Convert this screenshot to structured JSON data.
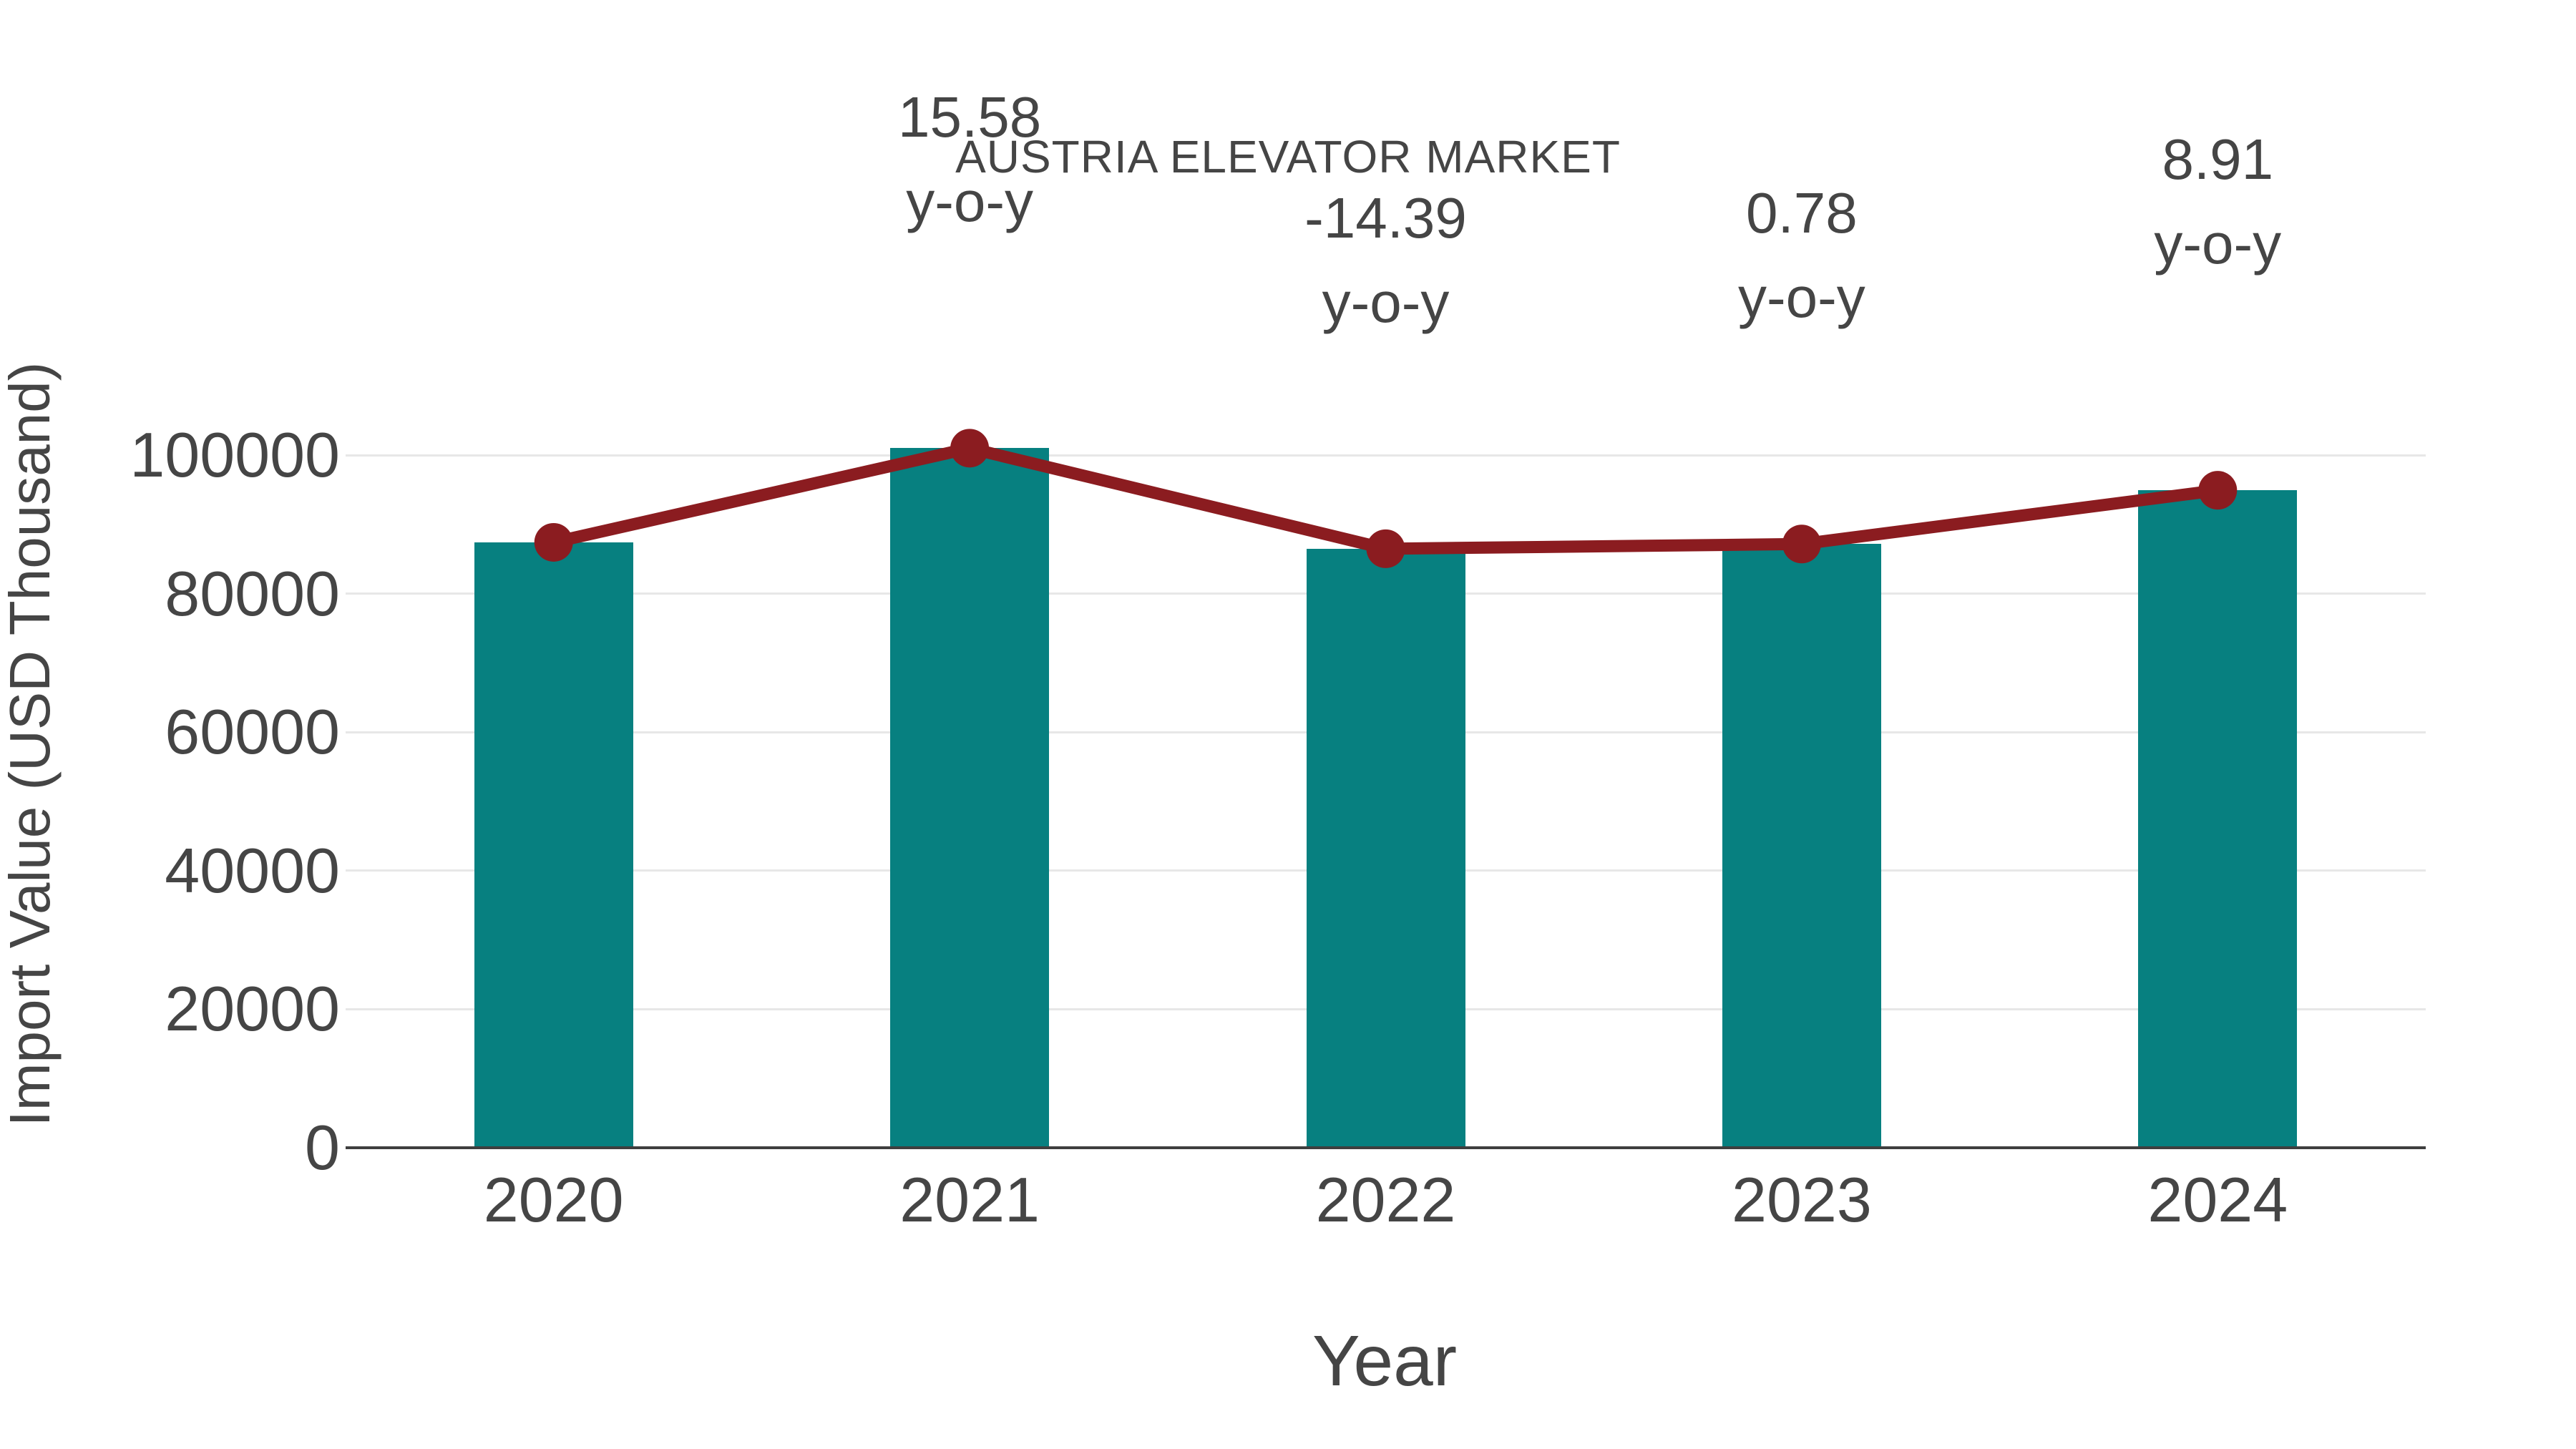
{
  "title": "AUSTRIA ELEVATOR MARKET",
  "x_axis": {
    "label": "Year",
    "ticks": [
      "2020",
      "2021",
      "2022",
      "2023",
      "2024"
    ]
  },
  "y_axis": {
    "label": "Import Value (USD Thousand)",
    "ticks": [
      "0",
      "20000",
      "40000",
      "60000",
      "80000",
      "100000"
    ]
  },
  "annotations": [
    {
      "category": "2021",
      "line1": "15.58",
      "line2": "y-o-y"
    },
    {
      "category": "2022",
      "line1": "-14.39",
      "line2": "y-o-y"
    },
    {
      "category": "2023",
      "line1": "0.78",
      "line2": "y-o-y"
    },
    {
      "category": "2024",
      "line1": "8.91",
      "line2": "y-o-y"
    }
  ],
  "colors": {
    "bar": "#078080",
    "line": "#8B1C20",
    "marker": "#8B1C20",
    "grid": "#E7E7E7",
    "axis": "#3F3F3F",
    "text": "#454545",
    "background": "#FFFFFF"
  },
  "chart_data": {
    "type": "bar",
    "categories": [
      "2020",
      "2021",
      "2022",
      "2023",
      "2024"
    ],
    "series": [
      {
        "name": "Import Value (USD Thousand)",
        "type": "bar",
        "values": [
          87400,
          101000,
          86480,
          87160,
          94920
        ]
      },
      {
        "name": "y-o-y (%)",
        "type": "line",
        "values": [
          null,
          15.58,
          -14.39,
          0.78,
          8.91
        ],
        "y_positions": [
          87400,
          101000,
          86480,
          87160,
          94920
        ]
      }
    ],
    "title": "AUSTRIA ELEVATOR MARKET",
    "xlabel": "Year",
    "ylabel": "Import Value (USD Thousand)",
    "ylim": [
      0,
      100000
    ],
    "yticks": [
      0,
      20000,
      40000,
      60000,
      80000,
      100000
    ],
    "grid": "horizontal",
    "legend": "none"
  }
}
